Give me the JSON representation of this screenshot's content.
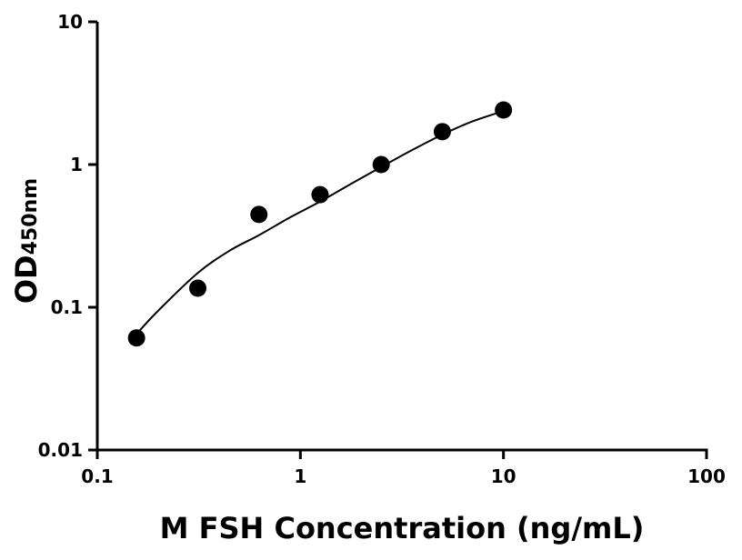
{
  "chart_data": {
    "type": "scatter",
    "title": "",
    "xlabel": "M FSH Concentration (ng/mL)",
    "ylabel_main": "OD",
    "ylabel_sub": "450nm",
    "x_scale": "log",
    "y_scale": "log",
    "xlim": [
      0.1,
      100
    ],
    "ylim": [
      0.01,
      10
    ],
    "x_ticks": [
      0.1,
      1,
      10,
      100
    ],
    "x_tick_labels": [
      "0.1",
      "1",
      "10",
      "100"
    ],
    "y_ticks": [
      0.01,
      0.1,
      1,
      10
    ],
    "y_tick_labels": [
      "0.01",
      "0.1",
      "1",
      "10"
    ],
    "grid": false,
    "legend": "none",
    "marker_color": "#000000",
    "points": {
      "x": [
        0.156,
        0.3125,
        0.625,
        1.25,
        2.5,
        5,
        10
      ],
      "y": [
        0.061,
        0.136,
        0.447,
        0.615,
        1.0,
        1.7,
        2.41
      ]
    },
    "fit_curve": {
      "x": [
        0.156,
        0.2,
        0.3125,
        0.45,
        0.625,
        0.9,
        1.25,
        1.8,
        2.5,
        3.5,
        5,
        7,
        10
      ],
      "y": [
        0.065,
        0.095,
        0.174,
        0.25,
        0.32,
        0.43,
        0.55,
        0.74,
        0.96,
        1.25,
        1.62,
        2.0,
        2.37
      ]
    }
  }
}
